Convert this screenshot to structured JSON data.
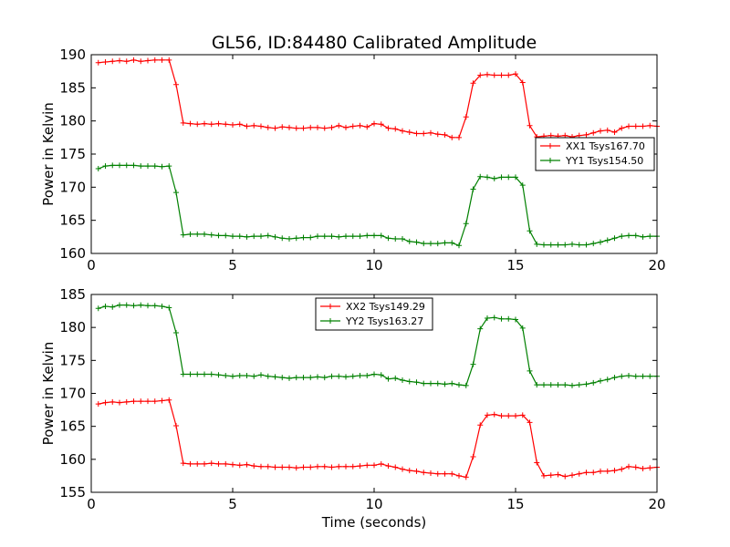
{
  "chart_data": {
    "title": "GL56, ID:84480 Calibrated Amplitude",
    "subplots": [
      {
        "type": "line",
        "ylabel": "Power in Kelvin",
        "xlabel": "",
        "xlim": [
          0,
          20
        ],
        "ylim": [
          160,
          190
        ],
        "xticks": [
          0,
          5,
          10,
          15,
          20
        ],
        "yticks": [
          160,
          165,
          170,
          175,
          180,
          185,
          190
        ],
        "legend_position": "right",
        "series": [
          {
            "name": "XX1 Tsys167.70",
            "color": "#ff0000",
            "x": [
              0.25,
              0.5,
              0.75,
              1.0,
              1.25,
              1.5,
              1.75,
              2.0,
              2.25,
              2.5,
              2.75,
              3.0,
              3.25,
              3.5,
              3.75,
              4.0,
              4.25,
              4.5,
              4.75,
              5.0,
              5.25,
              5.5,
              5.75,
              6.0,
              6.25,
              6.5,
              6.75,
              7.0,
              7.25,
              7.5,
              7.75,
              8.0,
              8.25,
              8.5,
              8.75,
              9.0,
              9.25,
              9.5,
              9.75,
              10.0,
              10.25,
              10.5,
              10.75,
              11.0,
              11.25,
              11.5,
              11.75,
              12.0,
              12.25,
              12.5,
              12.75,
              13.0,
              13.25,
              13.5,
              13.75,
              14.0,
              14.25,
              14.5,
              14.75,
              15.0,
              15.25,
              15.5,
              15.75,
              16.0,
              16.25,
              16.5,
              16.75,
              17.0,
              17.25,
              17.5,
              17.75,
              18.0,
              18.25,
              18.5,
              18.75,
              19.0,
              19.25,
              19.5,
              19.75,
              20.0
            ],
            "y": [
              188.8,
              188.9,
              189.0,
              189.1,
              189.0,
              189.2,
              189.0,
              189.1,
              189.2,
              189.2,
              189.2,
              185.5,
              179.7,
              179.6,
              179.5,
              179.6,
              179.5,
              179.6,
              179.5,
              179.4,
              179.5,
              179.2,
              179.3,
              179.2,
              179.0,
              178.9,
              179.1,
              179.0,
              178.9,
              178.9,
              179.0,
              179.0,
              178.9,
              179.0,
              179.3,
              179.0,
              179.2,
              179.3,
              179.1,
              179.6,
              179.5,
              178.9,
              178.8,
              178.5,
              178.3,
              178.1,
              178.1,
              178.2,
              178.0,
              177.9,
              177.5,
              177.5,
              180.6,
              185.7,
              186.9,
              187.0,
              186.9,
              186.9,
              186.9,
              187.1,
              185.8,
              179.3,
              177.6,
              177.7,
              177.8,
              177.7,
              177.8,
              177.6,
              177.8,
              177.9,
              178.2,
              178.5,
              178.6,
              178.3,
              178.9,
              179.2,
              179.2,
              179.2,
              179.3,
              179.2
            ]
          },
          {
            "name": "YY1 Tsys154.50",
            "color": "#008000",
            "x": [
              0.25,
              0.5,
              0.75,
              1.0,
              1.25,
              1.5,
              1.75,
              2.0,
              2.25,
              2.5,
              2.75,
              3.0,
              3.25,
              3.5,
              3.75,
              4.0,
              4.25,
              4.5,
              4.75,
              5.0,
              5.25,
              5.5,
              5.75,
              6.0,
              6.25,
              6.5,
              6.75,
              7.0,
              7.25,
              7.5,
              7.75,
              8.0,
              8.25,
              8.5,
              8.75,
              9.0,
              9.25,
              9.5,
              9.75,
              10.0,
              10.25,
              10.5,
              10.75,
              11.0,
              11.25,
              11.5,
              11.75,
              12.0,
              12.25,
              12.5,
              12.75,
              13.0,
              13.25,
              13.5,
              13.75,
              14.0,
              14.25,
              14.5,
              14.75,
              15.0,
              15.25,
              15.5,
              15.75,
              16.0,
              16.25,
              16.5,
              16.75,
              17.0,
              17.25,
              17.5,
              17.75,
              18.0,
              18.25,
              18.5,
              18.75,
              19.0,
              19.25,
              19.5,
              19.75,
              20.0
            ],
            "y": [
              172.8,
              173.2,
              173.3,
              173.3,
              173.3,
              173.3,
              173.2,
              173.2,
              173.2,
              173.1,
              173.2,
              169.2,
              162.8,
              162.9,
              162.9,
              162.9,
              162.8,
              162.7,
              162.7,
              162.6,
              162.6,
              162.5,
              162.6,
              162.6,
              162.7,
              162.5,
              162.3,
              162.2,
              162.3,
              162.4,
              162.4,
              162.6,
              162.6,
              162.6,
              162.5,
              162.6,
              162.6,
              162.6,
              162.7,
              162.7,
              162.7,
              162.3,
              162.2,
              162.2,
              161.8,
              161.7,
              161.5,
              161.5,
              161.5,
              161.6,
              161.6,
              161.2,
              164.5,
              169.7,
              171.6,
              171.5,
              171.3,
              171.5,
              171.5,
              171.5,
              170.3,
              163.4,
              161.4,
              161.3,
              161.3,
              161.3,
              161.3,
              161.4,
              161.3,
              161.3,
              161.5,
              161.7,
              162.0,
              162.3,
              162.6,
              162.7,
              162.7,
              162.5,
              162.6,
              162.6
            ]
          }
        ]
      },
      {
        "type": "line",
        "ylabel": "Power in Kelvin",
        "xlabel": "Time (seconds)",
        "xlim": [
          0,
          20
        ],
        "ylim": [
          155,
          185
        ],
        "xticks": [
          0,
          5,
          10,
          15,
          20
        ],
        "yticks": [
          155,
          160,
          165,
          170,
          175,
          180,
          185
        ],
        "legend_position": "upper center",
        "series": [
          {
            "name": "XX2 Tsys149.29",
            "color": "#ff0000",
            "x": [
              0.25,
              0.5,
              0.75,
              1.0,
              1.25,
              1.5,
              1.75,
              2.0,
              2.25,
              2.5,
              2.75,
              3.0,
              3.25,
              3.5,
              3.75,
              4.0,
              4.25,
              4.5,
              4.75,
              5.0,
              5.25,
              5.5,
              5.75,
              6.0,
              6.25,
              6.5,
              6.75,
              7.0,
              7.25,
              7.5,
              7.75,
              8.0,
              8.25,
              8.5,
              8.75,
              9.0,
              9.25,
              9.5,
              9.75,
              10.0,
              10.25,
              10.5,
              10.75,
              11.0,
              11.25,
              11.5,
              11.75,
              12.0,
              12.25,
              12.5,
              12.75,
              13.0,
              13.25,
              13.5,
              13.75,
              14.0,
              14.25,
              14.5,
              14.75,
              15.0,
              15.25,
              15.5,
              15.75,
              16.0,
              16.25,
              16.5,
              16.75,
              17.0,
              17.25,
              17.5,
              17.75,
              18.0,
              18.25,
              18.5,
              18.75,
              19.0,
              19.25,
              19.5,
              19.75,
              20.0
            ],
            "y": [
              168.4,
              168.6,
              168.7,
              168.6,
              168.7,
              168.8,
              168.8,
              168.8,
              168.8,
              168.9,
              169.0,
              165.1,
              159.4,
              159.3,
              159.3,
              159.3,
              159.4,
              159.3,
              159.3,
              159.2,
              159.1,
              159.2,
              159.0,
              158.9,
              158.9,
              158.8,
              158.8,
              158.8,
              158.7,
              158.8,
              158.8,
              158.9,
              158.9,
              158.8,
              158.9,
              158.9,
              158.9,
              159.0,
              159.1,
              159.1,
              159.3,
              159.0,
              158.8,
              158.5,
              158.3,
              158.2,
              158.0,
              157.9,
              157.8,
              157.8,
              157.8,
              157.5,
              157.3,
              160.4,
              165.2,
              166.7,
              166.8,
              166.6,
              166.6,
              166.6,
              166.7,
              165.6,
              159.5,
              157.5,
              157.6,
              157.7,
              157.4,
              157.6,
              157.8,
              158.0,
              158.0,
              158.2,
              158.2,
              158.3,
              158.5,
              158.9,
              158.8,
              158.6,
              158.7,
              158.8
            ]
          },
          {
            "name": "YY2 Tsys163.27",
            "color": "#008000",
            "x": [
              0.25,
              0.5,
              0.75,
              1.0,
              1.25,
              1.5,
              1.75,
              2.0,
              2.25,
              2.5,
              2.75,
              3.0,
              3.25,
              3.5,
              3.75,
              4.0,
              4.25,
              4.5,
              4.75,
              5.0,
              5.25,
              5.5,
              5.75,
              6.0,
              6.25,
              6.5,
              6.75,
              7.0,
              7.25,
              7.5,
              7.75,
              8.0,
              8.25,
              8.5,
              8.75,
              9.0,
              9.25,
              9.5,
              9.75,
              10.0,
              10.25,
              10.5,
              10.75,
              11.0,
              11.25,
              11.5,
              11.75,
              12.0,
              12.25,
              12.5,
              12.75,
              13.0,
              13.25,
              13.5,
              13.75,
              14.0,
              14.25,
              14.5,
              14.75,
              15.0,
              15.25,
              15.5,
              15.75,
              16.0,
              16.25,
              16.5,
              16.75,
              17.0,
              17.25,
              17.5,
              17.75,
              18.0,
              18.25,
              18.5,
              18.75,
              19.0,
              19.25,
              19.5,
              19.75,
              20.0
            ],
            "y": [
              182.9,
              183.2,
              183.1,
              183.4,
              183.4,
              183.3,
              183.4,
              183.3,
              183.3,
              183.2,
              183.0,
              179.2,
              172.9,
              172.9,
              172.9,
              172.9,
              172.9,
              172.8,
              172.7,
              172.6,
              172.7,
              172.7,
              172.6,
              172.8,
              172.6,
              172.5,
              172.4,
              172.3,
              172.4,
              172.4,
              172.4,
              172.5,
              172.4,
              172.6,
              172.6,
              172.5,
              172.6,
              172.7,
              172.7,
              172.9,
              172.8,
              172.2,
              172.3,
              172.0,
              171.8,
              171.7,
              171.5,
              171.5,
              171.5,
              171.4,
              171.5,
              171.3,
              171.2,
              174.4,
              179.8,
              181.4,
              181.5,
              181.3,
              181.3,
              181.2,
              179.9,
              173.4,
              171.3,
              171.3,
              171.3,
              171.3,
              171.3,
              171.2,
              171.3,
              171.4,
              171.6,
              171.9,
              172.1,
              172.4,
              172.6,
              172.7,
              172.6,
              172.6,
              172.6,
              172.6
            ]
          }
        ]
      }
    ]
  }
}
